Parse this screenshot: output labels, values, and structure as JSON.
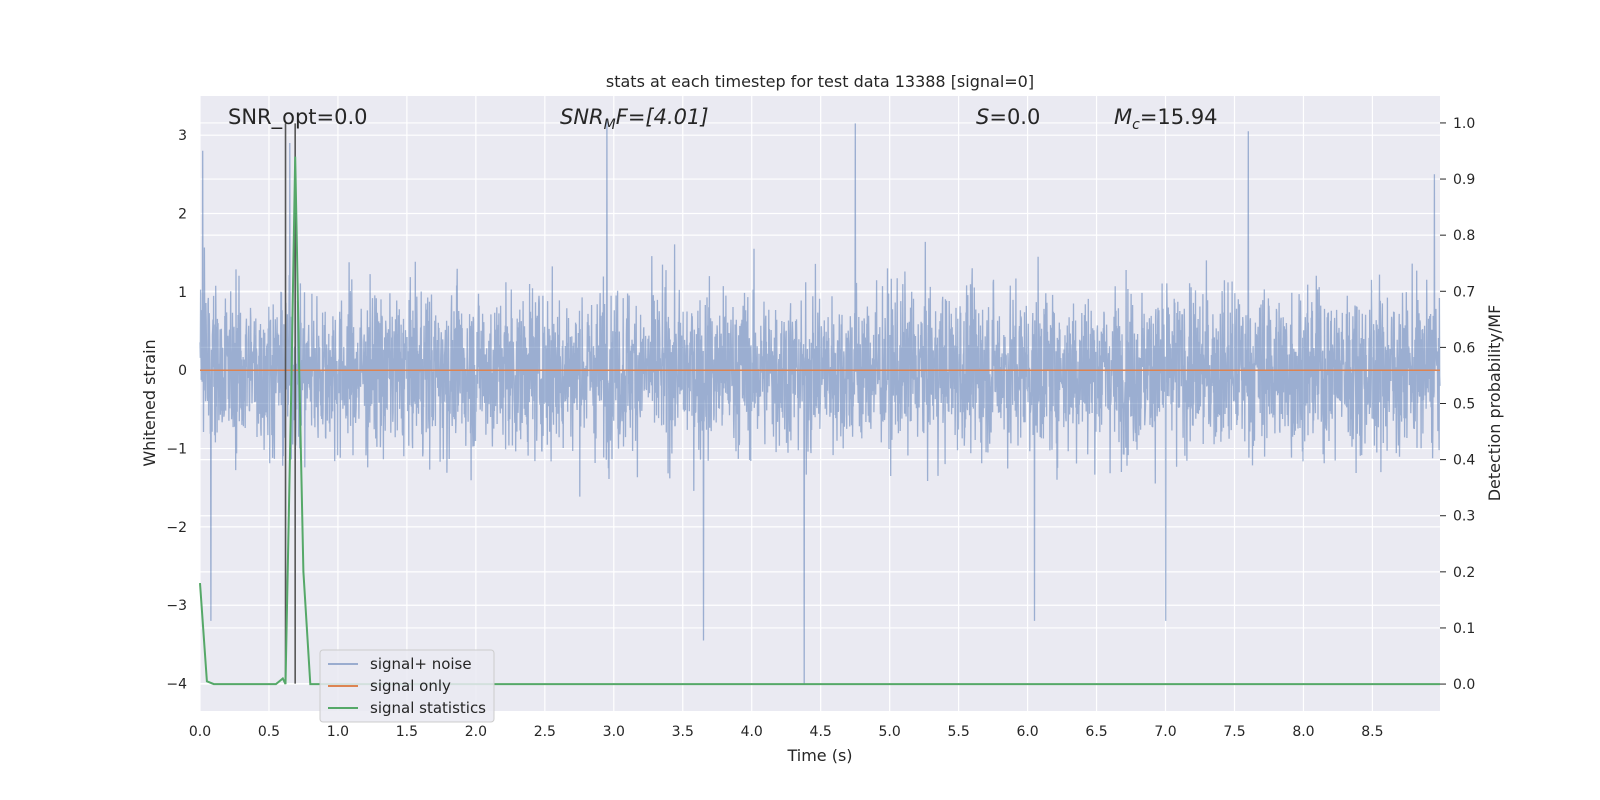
{
  "chart_data": {
    "type": "line",
    "title": "stats at each timestep for test data 13388 [signal=0]",
    "xlabel": "Time (s)",
    "ylabel": "Whitened strain",
    "ylabel_right": "Detection probability/MF",
    "xlim": [
      0.0,
      8.99
    ],
    "ylim": [
      -4.35,
      3.5
    ],
    "ylim_right": [
      -0.048,
      1.048
    ],
    "x_ticks": [
      "0.0",
      "0.5",
      "1.0",
      "1.5",
      "2.0",
      "2.5",
      "3.0",
      "3.5",
      "4.0",
      "4.5",
      "5.0",
      "5.5",
      "6.0",
      "6.5",
      "7.0",
      "7.5",
      "8.0",
      "8.5"
    ],
    "y_ticks": [
      "3",
      "2",
      "1",
      "0",
      "−1",
      "−2",
      "−3",
      "−4"
    ],
    "y_right_ticks": [
      "1.0",
      "0.9",
      "0.8",
      "0.7",
      "0.6",
      "0.5",
      "0.4",
      "0.3",
      "0.2",
      "0.1",
      "0.0"
    ],
    "grid": true,
    "legend_position": "lower-left",
    "annotations": {
      "snr_opt": "SNR_opt=0.0",
      "snr_mf_name": "SNR",
      "snr_mf_sub": "M",
      "snr_mf_tail": "F=[4.01]",
      "s_name": "S",
      "s_tail": "=0.0",
      "mc_name": "M",
      "mc_sub": "c",
      "mc_tail": "=15.94"
    },
    "series": [
      {
        "name": "signal+ noise",
        "axis": "left",
        "color": "#4c72b0",
        "description_points": [
          {
            "x": 0.02,
            "y": 2.8
          },
          {
            "x": 0.08,
            "y": -3.2
          },
          {
            "x": 0.65,
            "y": 2.9
          },
          {
            "x": 2.95,
            "y": 3.2
          },
          {
            "x": 3.65,
            "y": -3.45
          },
          {
            "x": 4.38,
            "y": -4.0
          },
          {
            "x": 4.75,
            "y": 3.15
          },
          {
            "x": 6.05,
            "y": -3.2
          },
          {
            "x": 7.0,
            "y": -3.2
          },
          {
            "x": 7.6,
            "y": 3.05
          },
          {
            "x": 8.95,
            "y": 2.5
          }
        ],
        "typical_envelope": [
          -1.9,
          2.0
        ]
      },
      {
        "name": "signal only",
        "axis": "left",
        "color": "#dd8452",
        "x": [
          0.0,
          8.99
        ],
        "y": [
          0.0,
          0.0
        ]
      },
      {
        "name": "signal statistics",
        "axis": "right",
        "color": "#55a868",
        "x": [
          0.0,
          0.05,
          0.1,
          0.15,
          0.2,
          0.3,
          0.4,
          0.5,
          0.55,
          0.6,
          0.62,
          0.66,
          0.69,
          0.72,
          0.75,
          0.8,
          0.85,
          1.0,
          2.0,
          3.0,
          4.0,
          5.0,
          6.0,
          7.0,
          8.0,
          8.99
        ],
        "y": [
          0.18,
          0.005,
          0.0,
          0.0,
          0.0,
          0.0,
          0.0,
          0.0,
          0.0,
          0.01,
          0.0,
          0.5,
          0.94,
          0.55,
          0.2,
          0.0,
          0.0,
          0.0,
          0.0,
          0.0,
          0.0,
          0.0,
          0.0,
          0.0,
          0.0,
          0.0
        ]
      }
    ],
    "vertical_markers": [
      0.62,
      0.69
    ]
  }
}
